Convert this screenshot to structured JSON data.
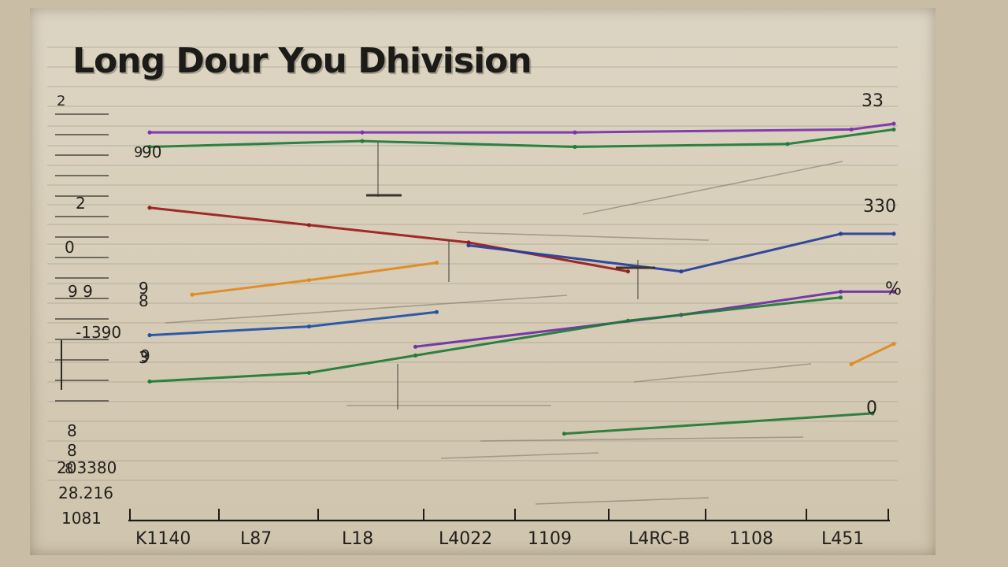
{
  "chart_data": {
    "type": "line",
    "title": "Long Dour You Dhivision",
    "y_tick_labels": [
      "2",
      "0",
      "9 9",
      "8",
      "3",
      "8",
      "8",
      "203380",
      "28.216",
      "1081"
    ],
    "y_series_markers": [
      "90",
      "9",
      "-1390",
      "9"
    ],
    "x_tick_labels": [
      "K1140",
      "L87",
      "L18",
      "L4022",
      "1109",
      "L4RC-B",
      "1108",
      "L451"
    ],
    "end_labels": [
      "33",
      "330",
      "%",
      "0"
    ],
    "xlim": [
      0,
      7
    ],
    "ylim": [
      0,
      14
    ],
    "grid": true,
    "series": [
      {
        "color": "#7b2fb0",
        "x": [
          0,
          2,
          4,
          6.6,
          7
        ],
        "y": [
          13.1,
          13.1,
          13.1,
          13.2,
          13.4
        ]
      },
      {
        "color": "#1e7a36",
        "x": [
          0,
          2,
          4,
          6,
          7
        ],
        "y": [
          12.6,
          12.8,
          12.6,
          12.7,
          13.2
        ]
      },
      {
        "color": "#9a1b1b",
        "x": [
          0,
          1.5,
          3,
          4.5
        ],
        "y": [
          10.5,
          9.9,
          9.3,
          8.3
        ]
      },
      {
        "color": "#e08a1e",
        "x": [
          0.4,
          1.5,
          2.7
        ],
        "y": [
          7.5,
          8.0,
          8.6
        ]
      },
      {
        "color": "#243d9c",
        "x": [
          3,
          5,
          6.5,
          7
        ],
        "y": [
          9.2,
          8.3,
          9.6,
          9.6
        ]
      },
      {
        "color": "#1f4fa6",
        "x": [
          0,
          1.5,
          2.7
        ],
        "y": [
          6.1,
          6.4,
          6.9
        ]
      },
      {
        "color": "#6b2fa6",
        "x": [
          2.5,
          5,
          6.5,
          7
        ],
        "y": [
          5.7,
          6.8,
          7.6,
          7.6
        ]
      },
      {
        "color": "#1e7a36",
        "x": [
          0,
          1.5,
          2.5,
          4.5,
          6.5
        ],
        "y": [
          4.5,
          4.8,
          5.4,
          6.6,
          7.4
        ]
      },
      {
        "color": "#1e7a36",
        "x": [
          3.9,
          6.8
        ],
        "y": [
          2.7,
          3.4
        ]
      },
      {
        "color": "#e08a1e",
        "x": [
          6.6,
          7
        ],
        "y": [
          5.1,
          5.8
        ]
      }
    ]
  }
}
